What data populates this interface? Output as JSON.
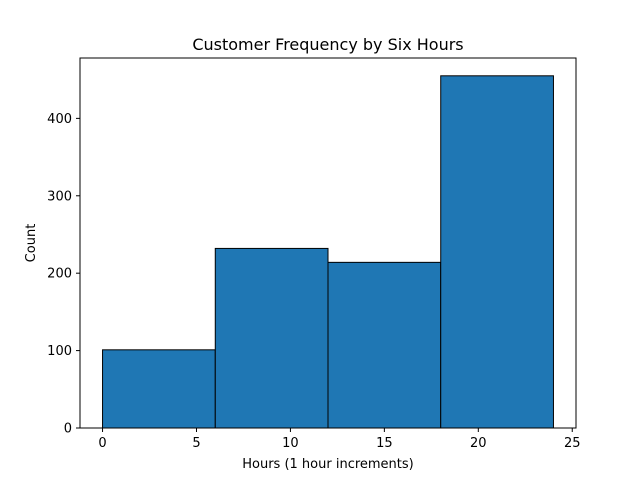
{
  "chart_data": {
    "type": "bar",
    "title": "Customer Frequency by Six Hours",
    "xlabel": "Hours (1 hour increments)",
    "ylabel": "Count",
    "bins": [
      {
        "start": 0,
        "end": 6,
        "value": 101
      },
      {
        "start": 6,
        "end": 12,
        "value": 232
      },
      {
        "start": 12,
        "end": 18,
        "value": 214
      },
      {
        "start": 18,
        "end": 24,
        "value": 455
      }
    ],
    "xlim": [
      -1.2,
      25.2
    ],
    "ylim": [
      0,
      478
    ],
    "xticks": [
      0,
      5,
      10,
      15,
      20,
      25
    ],
    "yticks": [
      0,
      100,
      200,
      300,
      400
    ],
    "bar_color": "#1f77b4",
    "edge_color": "#000000",
    "grid": false,
    "legend": "none"
  }
}
